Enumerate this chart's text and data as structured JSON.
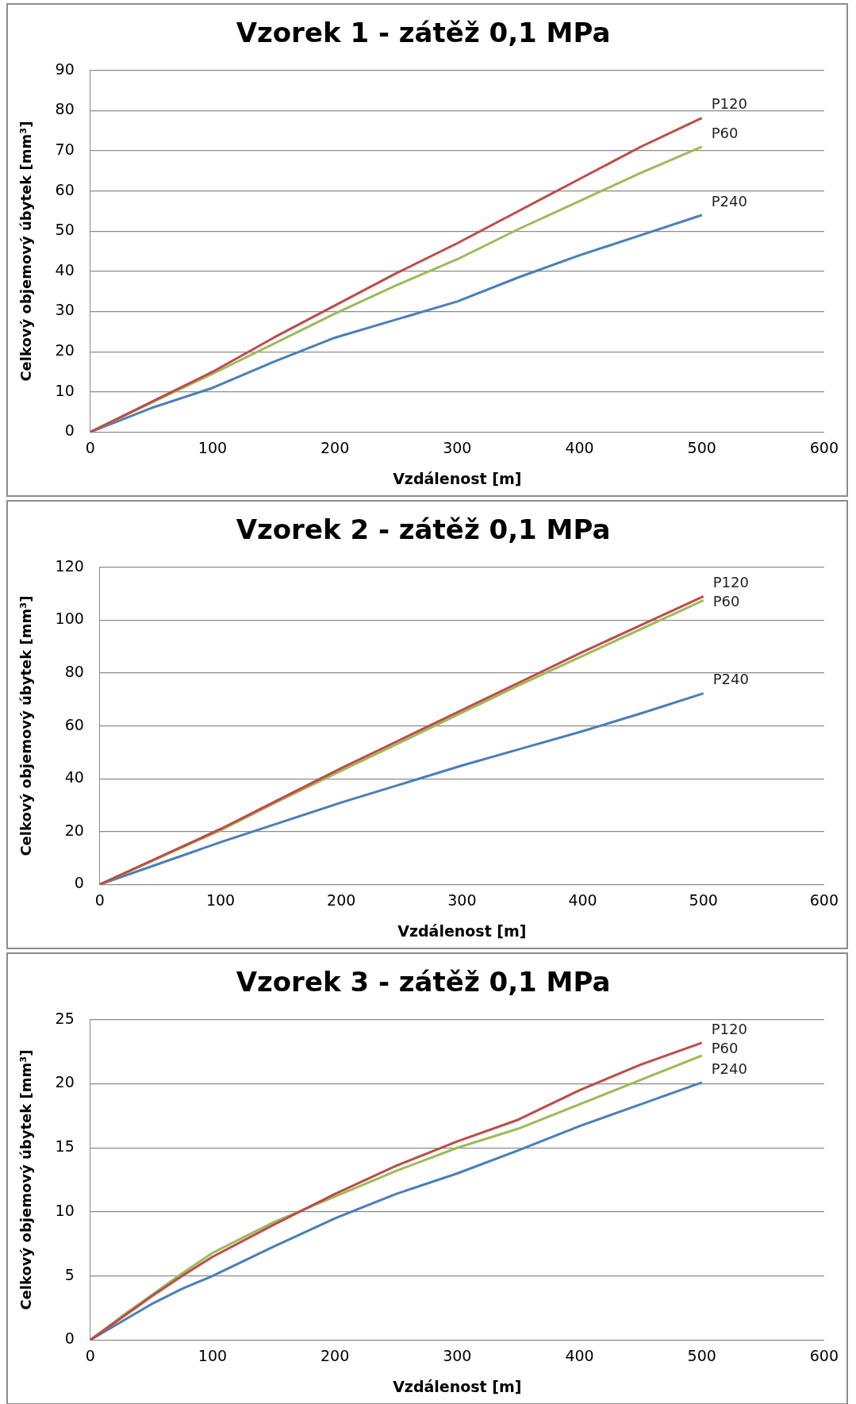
{
  "chart_data": [
    {
      "type": "line",
      "title": "Vzorek 1 - zátěž 0,1 MPa",
      "xlabel": "Vzdálenost [m]",
      "ylabel": "Celkový objemový úbytek [mm³]",
      "x": [
        0,
        50,
        100,
        150,
        200,
        250,
        300,
        350,
        400,
        450,
        500
      ],
      "xlim": [
        0,
        600
      ],
      "xticks": [
        0,
        100,
        200,
        300,
        400,
        500,
        600
      ],
      "ylim": [
        0,
        90
      ],
      "yticks": [
        0,
        10,
        20,
        30,
        40,
        50,
        60,
        70,
        80,
        90
      ],
      "grid": "y",
      "legend": false,
      "marker": "none",
      "line_style": "solid",
      "series": [
        {
          "name": "P120",
          "color": "#be4b48",
          "values": [
            0,
            7.5,
            15,
            23.5,
            31.5,
            39.5,
            47,
            55,
            63,
            71,
            78.2
          ]
        },
        {
          "name": "P60",
          "color": "#9bbb59",
          "values": [
            0,
            7.3,
            14.5,
            22,
            29.5,
            36.5,
            43,
            50.5,
            57.5,
            64.5,
            71
          ]
        },
        {
          "name": "P240",
          "color": "#4a7ebb",
          "values": [
            0,
            6,
            11,
            17.5,
            23.5,
            28,
            32.5,
            38.5,
            44,
            49,
            54
          ]
        }
      ]
    },
    {
      "type": "line",
      "title": "Vzorek 2 - zátěž 0,1 MPa",
      "xlabel": "Vzdálenost [m]",
      "ylabel": "Celkový objemový úbytek [mm³]",
      "x": [
        0,
        50,
        100,
        150,
        200,
        250,
        300,
        350,
        400,
        450,
        500
      ],
      "xlim": [
        0,
        600
      ],
      "xticks": [
        0,
        100,
        200,
        300,
        400,
        500,
        600
      ],
      "ylim": [
        0,
        120
      ],
      "yticks": [
        0,
        20,
        40,
        60,
        80,
        100,
        120
      ],
      "grid": "y",
      "legend": false,
      "marker": "none",
      "line_style": "solid",
      "series": [
        {
          "name": "P120",
          "color": "#be4b48",
          "values": [
            0,
            10.5,
            21,
            32.5,
            44,
            55,
            66,
            77,
            88,
            98.5,
            109
          ]
        },
        {
          "name": "P60",
          "color": "#9bbb59",
          "values": [
            0,
            10.3,
            20.5,
            32,
            43,
            54,
            65,
            76,
            86.5,
            97,
            107.5
          ]
        },
        {
          "name": "P240",
          "color": "#4a7ebb",
          "values": [
            0,
            8,
            16,
            23.5,
            31,
            38,
            45,
            51.5,
            58,
            65,
            72.3
          ]
        }
      ]
    },
    {
      "type": "line",
      "title": "Vzorek 3 - zátěž 0,1 MPa",
      "xlabel": "Vzdálenost [m]",
      "ylabel": "Celkový objemový úbytek [mm³]",
      "x": [
        0,
        25,
        50,
        75,
        100,
        150,
        200,
        250,
        300,
        350,
        400,
        450,
        500
      ],
      "xlim": [
        0,
        600
      ],
      "xticks": [
        0,
        100,
        200,
        300,
        400,
        500,
        600
      ],
      "ylim": [
        0,
        25
      ],
      "yticks": [
        0,
        5,
        10,
        15,
        20,
        25
      ],
      "grid": "y",
      "legend": false,
      "marker": "none",
      "line_style": "solid",
      "series": [
        {
          "name": "P120",
          "color": "#be4b48",
          "values": [
            0,
            1.7,
            3.4,
            5.0,
            6.5,
            9.0,
            11.4,
            13.6,
            15.5,
            17.2,
            19.5,
            21.5,
            23.2
          ]
        },
        {
          "name": "P60",
          "color": "#9bbb59",
          "values": [
            0,
            1.8,
            3.5,
            5.2,
            6.8,
            9.2,
            11.2,
            13.2,
            15,
            16.5,
            18.4,
            20.3,
            22.2
          ]
        },
        {
          "name": "P240",
          "color": "#4a7ebb",
          "values": [
            0,
            1.4,
            2.8,
            4,
            5,
            7.3,
            9.5,
            11.4,
            13,
            14.8,
            16.7,
            18.4,
            20.1
          ]
        }
      ]
    }
  ]
}
